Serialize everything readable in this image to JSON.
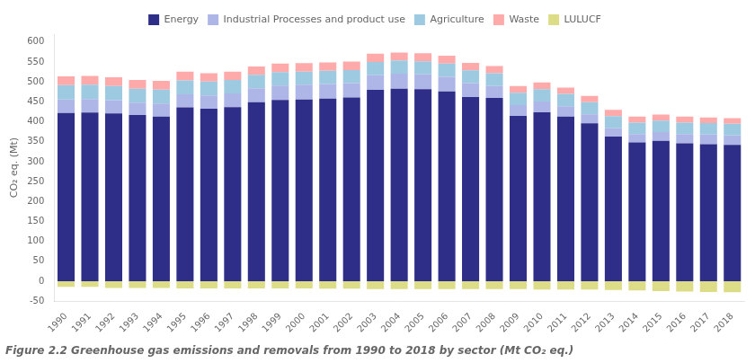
{
  "chart_data": {
    "type": "bar",
    "title": "Figure 2.2 Greenhouse gas emissions and removals from 1990 to 2018 by sector (Mt CO₂ eq.)",
    "y_label": "CO₂ eq. (Mt)",
    "categories": [
      "1990",
      "1991",
      "1992",
      "1993",
      "1994",
      "1995",
      "1996",
      "1997",
      "1998",
      "1999",
      "2000",
      "2001",
      "2002",
      "2003",
      "2004",
      "2005",
      "2006",
      "2007",
      "2008",
      "2009",
      "2010",
      "2011",
      "2012",
      "2013",
      "2014",
      "2015",
      "2016",
      "2017",
      "2018"
    ],
    "series": [
      {
        "name": "Energy",
        "color": "#2E2D88",
        "values": [
          422,
          423,
          421,
          417,
          413,
          436,
          433,
          437,
          449,
          455,
          456,
          458,
          461,
          480,
          483,
          482,
          476,
          462,
          460,
          415,
          424,
          413,
          396,
          363,
          348,
          352,
          346,
          344,
          342
        ]
      },
      {
        "name": "Industrial Processes and product use",
        "color": "#AEB6E8",
        "values": [
          34,
          34,
          33,
          31,
          33,
          33,
          33,
          34,
          35,
          36,
          37,
          37,
          36,
          37,
          38,
          37,
          37,
          35,
          30,
          27,
          27,
          26,
          23,
          21,
          21,
          22,
          23,
          24,
          24
        ]
      },
      {
        "name": "Agriculture",
        "color": "#9ECAE1",
        "values": [
          36,
          36,
          36,
          35,
          35,
          35,
          35,
          34,
          34,
          34,
          33,
          33,
          33,
          33,
          33,
          33,
          33,
          32,
          32,
          31,
          31,
          31,
          30,
          30,
          29,
          29,
          29,
          29,
          29
        ]
      },
      {
        "name": "Waste",
        "color": "#FFAAAA",
        "values": [
          22,
          22,
          22,
          22,
          22,
          22,
          21,
          21,
          21,
          21,
          21,
          21,
          21,
          21,
          20,
          20,
          20,
          19,
          18,
          17,
          17,
          16,
          16,
          16,
          15,
          15,
          15,
          14,
          14
        ]
      },
      {
        "name": "LULUCF",
        "color": "#DDDD88",
        "values": [
          -14,
          -14,
          -17,
          -17,
          -17,
          -18,
          -18,
          -18,
          -18,
          -18,
          -18,
          -19,
          -19,
          -20,
          -20,
          -20,
          -20,
          -20,
          -20,
          -20,
          -21,
          -21,
          -21,
          -22,
          -23,
          -25,
          -26,
          -27,
          -28
        ]
      }
    ],
    "ylim": [
      -50,
      620
    ],
    "yticks": [
      -50,
      0,
      50,
      100,
      150,
      200,
      250,
      300,
      350,
      400,
      450,
      500,
      550,
      600
    ],
    "stacked": true,
    "grid": false,
    "legend": "top"
  }
}
